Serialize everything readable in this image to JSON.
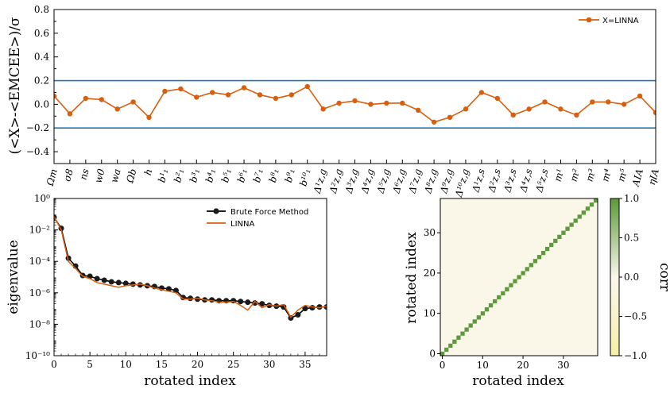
{
  "chart_data": [
    {
      "type": "line",
      "ylabel": "(<X>-<EMCEE>)/σ",
      "ylim": [
        -0.5,
        0.8
      ],
      "yticks": [
        "−0.4",
        "−0.2",
        "0.0",
        "0.2",
        "0.4",
        "0.6",
        "0.8"
      ],
      "ytick_values": [
        -0.4,
        -0.2,
        0.0,
        0.2,
        0.4,
        0.6,
        0.8
      ],
      "categories": [
        "Ωm",
        "σ8",
        "ns",
        "w0",
        "wa",
        "Ωb",
        "h",
        "b¹₁",
        "b²₁",
        "b³₁",
        "b⁴₁",
        "b⁵₁",
        "b⁶₁",
        "b⁷₁",
        "b⁸₁",
        "b⁹₁",
        "b¹⁰₁",
        "Δ¹z,g",
        "Δ²z,g",
        "Δ³z,g",
        "Δ⁴z,g",
        "Δ⁵z,g",
        "Δ⁶z,g",
        "Δ⁷z,g",
        "Δ⁸z,g",
        "Δ⁹z,g",
        "Δ¹⁰z,g",
        "Δ¹z,s",
        "Δ²z,s",
        "Δ³z,s",
        "Δ⁴z,s",
        "Δ⁵z,s",
        "m¹",
        "m²",
        "m³",
        "m⁴",
        "m⁵",
        "AIA",
        "ηIA"
      ],
      "series": [
        {
          "name": "X=LINNA",
          "color": "#d95f0e",
          "values": [
            0.07,
            -0.08,
            0.05,
            0.04,
            -0.04,
            0.02,
            -0.11,
            0.11,
            0.13,
            0.06,
            0.1,
            0.08,
            0.14,
            0.08,
            0.05,
            0.08,
            0.15,
            -0.04,
            0.01,
            0.03,
            0.0,
            0.01,
            0.01,
            -0.05,
            -0.15,
            -0.11,
            -0.04,
            0.1,
            0.05,
            -0.09,
            -0.04,
            0.02,
            -0.04,
            -0.09,
            0.02,
            0.02,
            0.0,
            0.07,
            -0.07
          ]
        }
      ],
      "hlines": [
        {
          "y": 0.2,
          "color": "#1f77b4"
        },
        {
          "y": -0.2,
          "color": "#1f77b4"
        }
      ],
      "legend_position": "top-right",
      "grid": false
    },
    {
      "type": "line",
      "xlabel": "rotated index",
      "ylabel": "eigenvalue",
      "yscale": "log",
      "xlim": [
        0,
        38
      ],
      "ylim_exp": [
        -10,
        0
      ],
      "xticks": [
        "0",
        "5",
        "10",
        "15",
        "20",
        "25",
        "30",
        "35"
      ],
      "xtick_values": [
        0,
        5,
        10,
        15,
        20,
        25,
        30,
        35
      ],
      "yticks": [
        "10⁻¹⁰",
        "10⁻⁸",
        "10⁻⁶",
        "10⁻⁴",
        "10⁻²",
        "10⁰"
      ],
      "ytick_exps": [
        -10,
        -8,
        -6,
        -4,
        -2,
        0
      ],
      "legend_position": "top-right",
      "grid": false,
      "series": [
        {
          "name": "Brute Force Method",
          "color": "#000000",
          "marker": "circle",
          "log10_values": [
            -1.2,
            -1.9,
            -3.8,
            -4.3,
            -4.9,
            -4.95,
            -5.1,
            -5.2,
            -5.3,
            -5.35,
            -5.4,
            -5.45,
            -5.5,
            -5.55,
            -5.6,
            -5.7,
            -5.75,
            -5.85,
            -6.3,
            -6.35,
            -6.4,
            -6.45,
            -6.45,
            -6.5,
            -6.5,
            -6.5,
            -6.55,
            -6.6,
            -6.65,
            -6.7,
            -6.8,
            -6.85,
            -6.9,
            -7.6,
            -7.4,
            -7.0,
            -6.95,
            -6.9,
            -6.9
          ]
        },
        {
          "name": "LINNA",
          "color": "#d95f0e",
          "log10_values": [
            -1.15,
            -2.0,
            -4.0,
            -4.45,
            -4.95,
            -5.1,
            -5.35,
            -5.45,
            -5.55,
            -5.65,
            -5.55,
            -5.5,
            -5.45,
            -5.55,
            -5.7,
            -5.8,
            -5.9,
            -6.0,
            -6.4,
            -6.4,
            -6.35,
            -6.45,
            -6.5,
            -6.6,
            -6.6,
            -6.55,
            -6.8,
            -7.1,
            -6.55,
            -6.95,
            -6.75,
            -6.85,
            -6.75,
            -7.55,
            -7.1,
            -6.8,
            -6.9,
            -6.95,
            -6.85
          ]
        }
      ]
    },
    {
      "type": "heatmap",
      "xlabel": "rotated index",
      "ylabel": "rotated index",
      "size": 39,
      "diagonal_value": 1.0,
      "offdiagonal_value": 0.0,
      "xticks": [
        "0",
        "10",
        "20",
        "30"
      ],
      "xtick_values": [
        0,
        10,
        20,
        30
      ],
      "yticks": [
        "0",
        "10",
        "20",
        "30"
      ],
      "ytick_values": [
        0,
        10,
        20,
        30
      ],
      "colorbar": {
        "label": "corr",
        "ticks": [
          "1.0",
          "0.5",
          "0.0",
          "−0.5",
          "−1.0"
        ],
        "tick_values": [
          1.0,
          0.5,
          0.0,
          -0.5,
          -1.0
        ],
        "colors": [
          "#f5efb0",
          "#faf6e8",
          "#5d9a3a"
        ]
      }
    }
  ]
}
